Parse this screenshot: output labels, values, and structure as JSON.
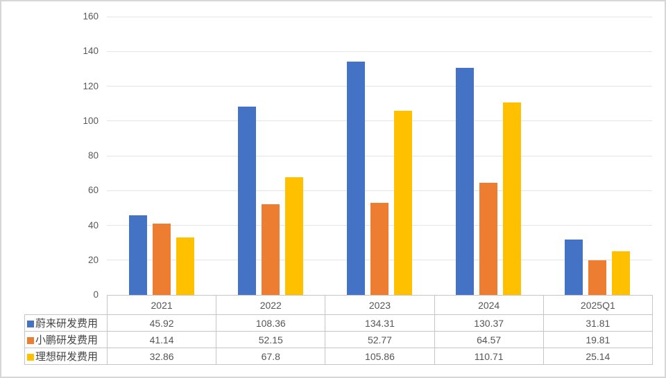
{
  "chart_data": {
    "type": "bar",
    "title": "",
    "xlabel": "",
    "ylabel": "",
    "categories": [
      "2021",
      "2022",
      "2023",
      "2024",
      "2025Q1"
    ],
    "series": [
      {
        "name": "蔚来研发费用",
        "color": "#4472C4",
        "values": [
          45.92,
          108.36,
          134.31,
          130.37,
          31.81
        ]
      },
      {
        "name": "小鹏研发费用",
        "color": "#ED7D31",
        "values": [
          41.14,
          52.15,
          52.77,
          64.57,
          19.81
        ]
      },
      {
        "name": "理想研发费用",
        "color": "#FFC000",
        "values": [
          32.86,
          67.8,
          105.86,
          110.71,
          25.14
        ]
      }
    ],
    "ylim": [
      0,
      160
    ],
    "yticks": [
      0,
      20,
      40,
      60,
      80,
      100,
      120,
      140,
      160
    ],
    "grid": true,
    "legend_position": "data-table-left-column"
  },
  "colors": {
    "gridline": "#e4e4e4",
    "table_border": "#c5c5c5",
    "axis_text": "#595959",
    "table_text": "#555555",
    "frame_border": "#d6d6d6",
    "background": "#ffffff"
  }
}
